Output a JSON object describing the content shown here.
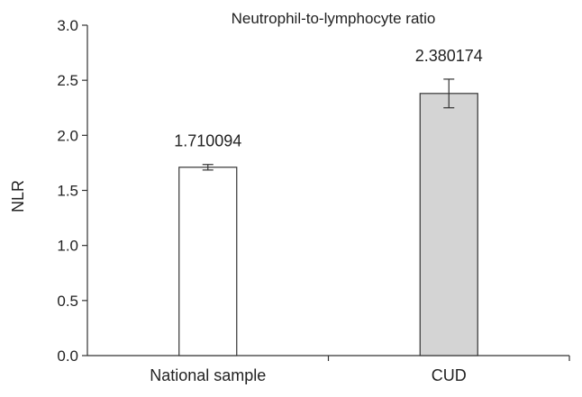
{
  "chart_data": {
    "type": "bar",
    "title": "Neutrophil-to-lymphocyte ratio",
    "xlabel": "",
    "ylabel": "NLR",
    "ylim": [
      0,
      3.0
    ],
    "yticks": [
      0.0,
      0.5,
      1.0,
      1.5,
      2.0,
      2.5,
      3.0
    ],
    "ytick_labels": [
      "0.0",
      "0.5",
      "1.0",
      "1.5",
      "2.0",
      "2.5",
      "3.0"
    ],
    "categories": [
      "National sample",
      "CUD"
    ],
    "values": [
      1.710094,
      2.380174
    ],
    "value_labels": [
      "1.710094",
      "2.380174"
    ],
    "error": [
      0.025,
      0.13
    ],
    "colors": [
      "#ffffff",
      "#d4d4d4"
    ],
    "grid": false,
    "legend": "none"
  }
}
